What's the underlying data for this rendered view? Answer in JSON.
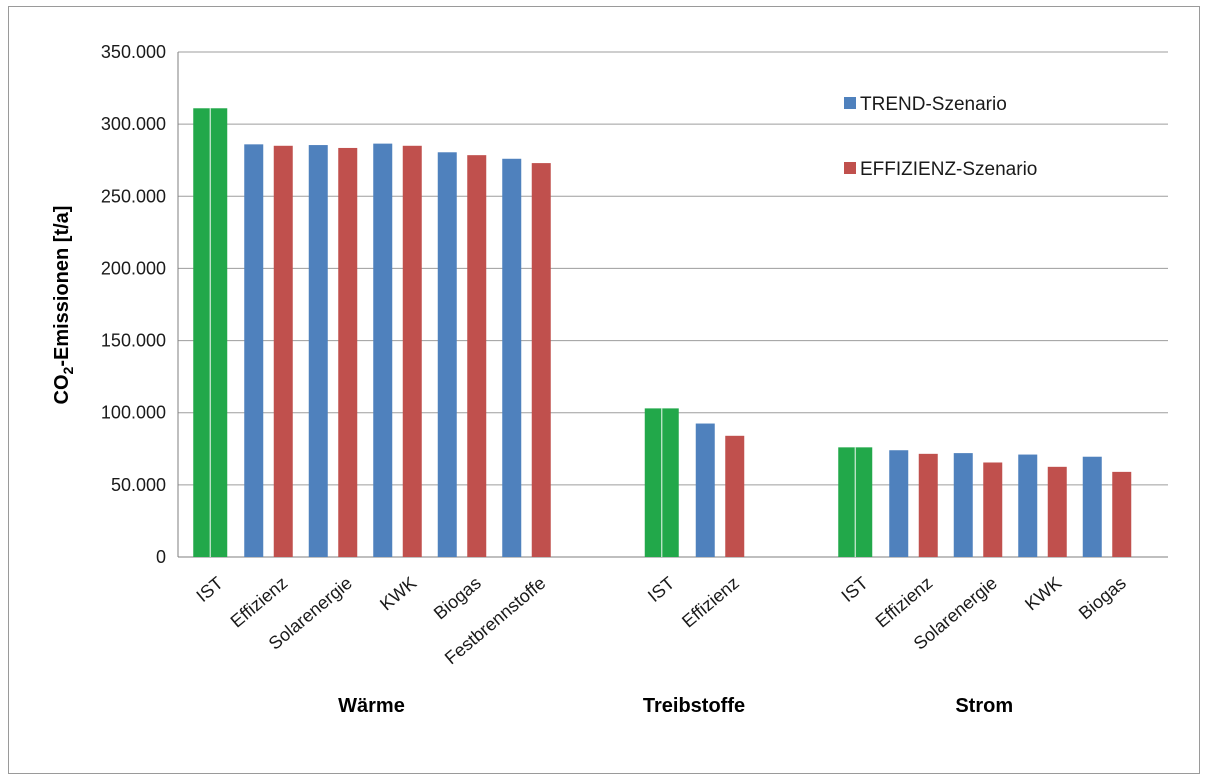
{
  "chart_data": {
    "type": "bar",
    "title": "",
    "ylabel": "CO₂-Emissionen  [t/a]",
    "ylabel_parts": [
      "CO",
      "2",
      "-Emissionen  [t/a]"
    ],
    "ylim": [
      0,
      350000
    ],
    "yticks": [
      0,
      50000,
      100000,
      150000,
      200000,
      250000,
      300000,
      350000
    ],
    "ytick_labels": [
      "0",
      "50.000",
      "100.000",
      "150.000",
      "200.000",
      "250.000",
      "300.000",
      "350.000"
    ],
    "grid": true,
    "legend_position": "top-right",
    "series": [
      {
        "name": "TREND-Szenario",
        "color": "#4f81bd"
      },
      {
        "name": "EFFIZIENZ-Szenario",
        "color": "#c0504d"
      }
    ],
    "ist_color": "#22a84a",
    "groups": [
      {
        "name": "Wärme",
        "categories": [
          {
            "label": "IST",
            "ist": true,
            "values": [
              311000
            ]
          },
          {
            "label": "Effizienz",
            "values": [
              286000,
              285000
            ]
          },
          {
            "label": "Solarenergie",
            "values": [
              285500,
              283500
            ]
          },
          {
            "label": "KWK",
            "values": [
              286500,
              285000
            ]
          },
          {
            "label": "Biogas",
            "values": [
              280500,
              278500
            ]
          },
          {
            "label": "Festbrennstoffe",
            "values": [
              276000,
              273000
            ]
          }
        ]
      },
      {
        "name": "Treibstoffe",
        "categories": [
          {
            "label": "IST",
            "ist": true,
            "values": [
              103000
            ]
          },
          {
            "label": "Effizienz",
            "values": [
              92500,
              84000
            ]
          }
        ]
      },
      {
        "name": "Strom",
        "categories": [
          {
            "label": "IST",
            "ist": true,
            "values": [
              76000
            ]
          },
          {
            "label": "Effizienz",
            "values": [
              74000,
              71500
            ]
          },
          {
            "label": "Solarenergie",
            "values": [
              72000,
              65500
            ]
          },
          {
            "label": "KWK",
            "values": [
              71000,
              62500
            ]
          },
          {
            "label": "Biogas",
            "values": [
              69500,
              59000
            ]
          }
        ]
      }
    ]
  }
}
